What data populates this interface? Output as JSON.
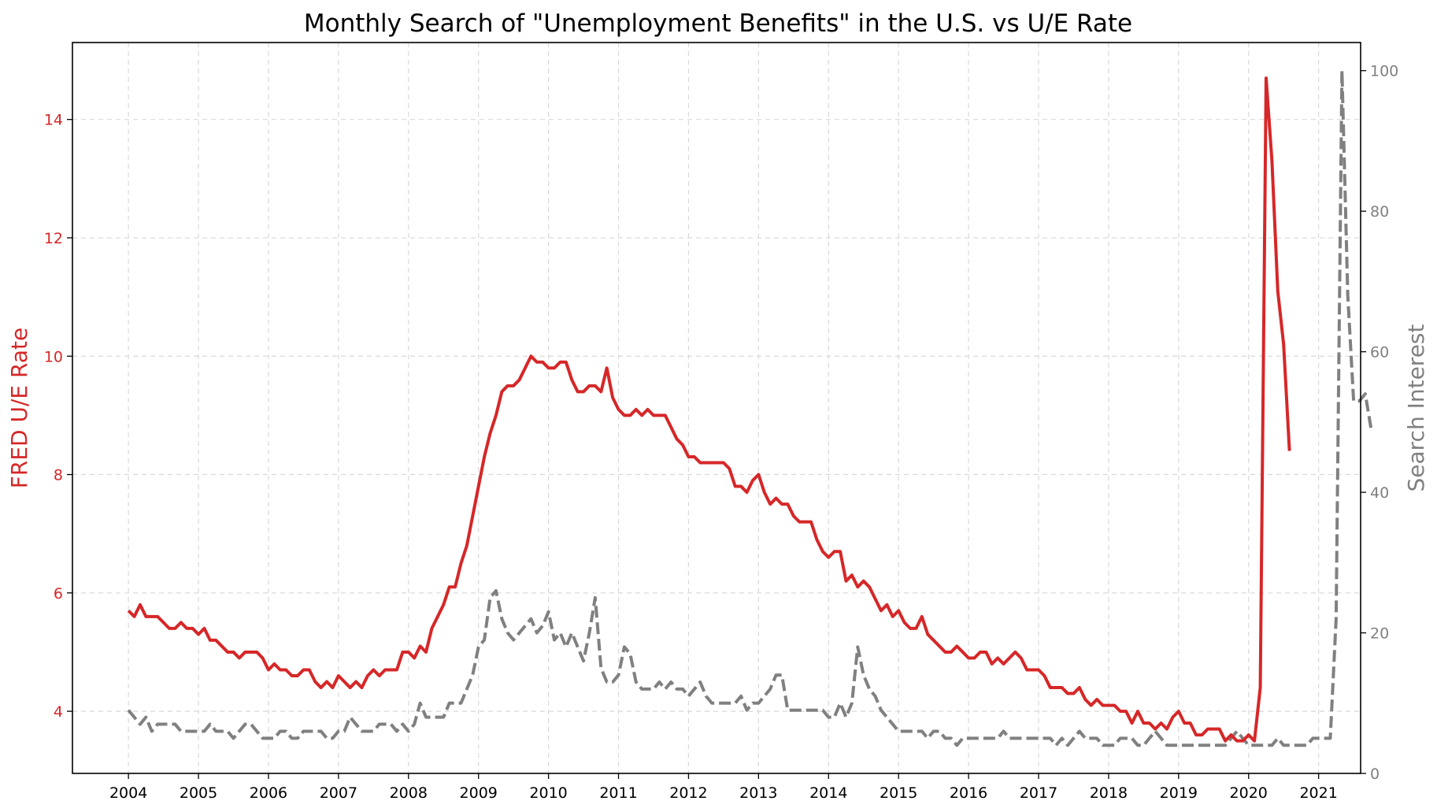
{
  "chart_data": {
    "type": "line",
    "title": "Monthly Search of \"Unemployment Benefits\" in the U.S. vs U/E Rate",
    "ylabel": "FRED U/E Rate",
    "y2label": "Search Interest",
    "xlim": [
      2003.2,
      2021.6
    ],
    "ylim": [
      2.95,
      15.3
    ],
    "y2lim": [
      0,
      104
    ],
    "x_ticks": [
      2004,
      2005,
      2006,
      2007,
      2008,
      2009,
      2010,
      2011,
      2012,
      2013,
      2014,
      2015,
      2016,
      2017,
      2018,
      2019,
      2020,
      2021
    ],
    "x_tick_labels": [
      "2004",
      "2005",
      "2006",
      "2007",
      "2008",
      "2009",
      "2010",
      "2011",
      "2012",
      "2013",
      "2014",
      "2015",
      "2016",
      "2017",
      "2018",
      "2019",
      "2020",
      "2021"
    ],
    "y_ticks": [
      4,
      6,
      8,
      10,
      12,
      14
    ],
    "y_tick_labels": [
      "4",
      "6",
      "8",
      "10",
      "12",
      "14"
    ],
    "y2_ticks": [
      0,
      20,
      40,
      60,
      80,
      100
    ],
    "y2_tick_labels": [
      "0",
      "20",
      "40",
      "60",
      "80",
      "100"
    ],
    "grid": true,
    "colors": {
      "ue": "#d62728",
      "search": "#808080"
    },
    "x_start": 2004,
    "x_step_months": 1,
    "series": [
      {
        "axis": "left",
        "style": "solid",
        "values": [
          5.7,
          5.6,
          5.8,
          5.6,
          5.6,
          5.6,
          5.5,
          5.4,
          5.4,
          5.5,
          5.4,
          5.4,
          5.3,
          5.4,
          5.2,
          5.2,
          5.1,
          5.0,
          5.0,
          4.9,
          5.0,
          5.0,
          5.0,
          4.9,
          4.7,
          4.8,
          4.7,
          4.7,
          4.6,
          4.6,
          4.7,
          4.7,
          4.5,
          4.4,
          4.5,
          4.4,
          4.6,
          4.5,
          4.4,
          4.5,
          4.4,
          4.6,
          4.7,
          4.6,
          4.7,
          4.7,
          4.7,
          5.0,
          5.0,
          4.9,
          5.1,
          5.0,
          5.4,
          5.6,
          5.8,
          6.1,
          6.1,
          6.5,
          6.8,
          7.3,
          7.8,
          8.3,
          8.7,
          9.0,
          9.4,
          9.5,
          9.5,
          9.6,
          9.8,
          10.0,
          9.9,
          9.9,
          9.8,
          9.8,
          9.9,
          9.9,
          9.6,
          9.4,
          9.4,
          9.5,
          9.5,
          9.4,
          9.8,
          9.3,
          9.1,
          9.0,
          9.0,
          9.1,
          9.0,
          9.1,
          9.0,
          9.0,
          9.0,
          8.8,
          8.6,
          8.5,
          8.3,
          8.3,
          8.2,
          8.2,
          8.2,
          8.2,
          8.2,
          8.1,
          7.8,
          7.8,
          7.7,
          7.9,
          8.0,
          7.7,
          7.5,
          7.6,
          7.5,
          7.5,
          7.3,
          7.2,
          7.2,
          7.2,
          6.9,
          6.7,
          6.6,
          6.7,
          6.7,
          6.2,
          6.3,
          6.1,
          6.2,
          6.1,
          5.9,
          5.7,
          5.8,
          5.6,
          5.7,
          5.5,
          5.4,
          5.4,
          5.6,
          5.3,
          5.2,
          5.1,
          5.0,
          5.0,
          5.1,
          5.0,
          4.9,
          4.9,
          5.0,
          5.0,
          4.8,
          4.9,
          4.8,
          4.9,
          5.0,
          4.9,
          4.7,
          4.7,
          4.7,
          4.6,
          4.4,
          4.4,
          4.4,
          4.3,
          4.3,
          4.4,
          4.2,
          4.1,
          4.2,
          4.1,
          4.1,
          4.1,
          4.0,
          4.0,
          3.8,
          4.0,
          3.8,
          3.8,
          3.7,
          3.8,
          3.7,
          3.9,
          4.0,
          3.8,
          3.8,
          3.6,
          3.6,
          3.7,
          3.7,
          3.7,
          3.5,
          3.6,
          3.5,
          3.5,
          3.6,
          3.5,
          4.4,
          14.7,
          13.3,
          11.1,
          10.2,
          8.4
        ]
      },
      {
        "axis": "right",
        "style": "dashed",
        "values": [
          9,
          8,
          7,
          8,
          6,
          7,
          7,
          7,
          7,
          6,
          6,
          6,
          6,
          6,
          7,
          6,
          6,
          6,
          5,
          6,
          7,
          7,
          6,
          5,
          5,
          5,
          6,
          6,
          5,
          5,
          6,
          6,
          6,
          6,
          5,
          5,
          6,
          6,
          8,
          7,
          6,
          6,
          6,
          7,
          7,
          7,
          6,
          7,
          6,
          7,
          10,
          8,
          8,
          8,
          8,
          10,
          10,
          10,
          12,
          14,
          18,
          19,
          25,
          26,
          22,
          20,
          19,
          20,
          21,
          22,
          20,
          21,
          23,
          19,
          20,
          18,
          20,
          18,
          16,
          20,
          25,
          15,
          13,
          13,
          14,
          18,
          17,
          13,
          12,
          12,
          12,
          13,
          12,
          13,
          12,
          12,
          11,
          12,
          13,
          11,
          10,
          10,
          10,
          10,
          10,
          11,
          9,
          10,
          10,
          11,
          12,
          14,
          14,
          9,
          9,
          9,
          9,
          9,
          9,
          9,
          8,
          8,
          10,
          8,
          10,
          18,
          14,
          12,
          11,
          9,
          8,
          7,
          6,
          6,
          6,
          6,
          6,
          5,
          6,
          6,
          5,
          5,
          4,
          5,
          5,
          5,
          5,
          5,
          5,
          5,
          6,
          5,
          5,
          5,
          5,
          5,
          5,
          5,
          5,
          4,
          5,
          4,
          5,
          6,
          5,
          5,
          5,
          4,
          4,
          4,
          5,
          5,
          5,
          4,
          4,
          5,
          6,
          5,
          4,
          4,
          4,
          4,
          4,
          4,
          4,
          4,
          4,
          4,
          4,
          5,
          6,
          5,
          4,
          4,
          4,
          4,
          4,
          5,
          4,
          4,
          4,
          4,
          4,
          5,
          5,
          5,
          5,
          22,
          100,
          68,
          53,
          53,
          54,
          49
        ]
      }
    ]
  }
}
